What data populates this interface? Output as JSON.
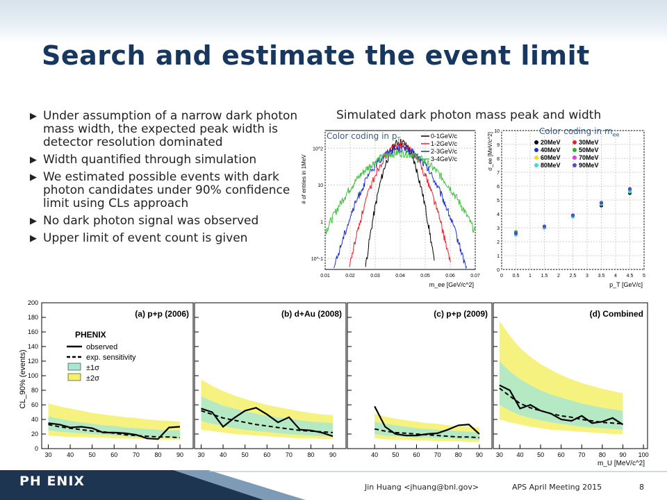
{
  "slide": {
    "title": "Search and estimate the event limit",
    "bullets": [
      "Under assumption of a narrow dark photon mass width, the expected peak width is detector resolution dominated",
      "Width quantified through simulation",
      "We estimated possible events with dark photon candidates under 90% confidence limit using CLs approach",
      "No dark photon signal was observed",
      "Upper limit of event count is given"
    ],
    "bullet_icon": "triangle-right-icon",
    "figure_title": "Simulated dark photon mass peak and width",
    "color_coding_pt": "Color coding in p",
    "color_coding_pt_sub": "T",
    "color_coding_mee": "Color coding in m",
    "color_coding_mee_sub": "ee",
    "footer": {
      "logo": "PH ENIX",
      "author": "Jin Huang <jhuang@bnl.gov>",
      "meeting": "APS April Meeting 2015",
      "page": "8"
    },
    "colors": {
      "title": "#17375e",
      "accent_band": "#d7e2ec"
    }
  },
  "chart_data": [
    {
      "type": "line",
      "xlabel": "m_ee [GeV/c^2]",
      "ylabel": "# of entries in 1MeV",
      "xlim": [
        0.01,
        0.07
      ],
      "yscale": "log",
      "ylim": [
        0.05,
        300
      ],
      "x_ticks": [
        "0.01",
        "0.02",
        "0.03",
        "0.04",
        "0.05",
        "0.06",
        "0.07"
      ],
      "y_ticks": [
        "10^-1",
        "1",
        "10",
        "10^2"
      ],
      "legend": [
        "0-1GeV/c",
        "1-2GeV/c",
        "2-3GeV/c",
        "3-4GeV/c"
      ],
      "series": [
        {
          "name": "0-1GeV/c",
          "color": "#000000",
          "center": 0.04,
          "sigma": 0.0035,
          "peak": 150
        },
        {
          "name": "1-2GeV/c",
          "color": "#e8202a",
          "center": 0.04,
          "sigma": 0.0052,
          "peak": 120
        },
        {
          "name": "2-3GeV/c",
          "color": "#1f2fd0",
          "center": 0.04,
          "sigma": 0.0068,
          "peak": 100
        },
        {
          "name": "3-4GeV/c",
          "color": "#3fbf3f",
          "center": 0.04,
          "sigma": 0.0095,
          "peak": 75
        }
      ]
    },
    {
      "type": "scatter",
      "xlabel": "p_T [GeV/c]",
      "ylabel": "σ_ee [MeV/c^2]",
      "xlim": [
        0,
        5
      ],
      "ylim": [
        0,
        10
      ],
      "x_ticks": [
        "0",
        "0.5",
        "1",
        "1.5",
        "2",
        "2.5",
        "3",
        "3.5",
        "4",
        "4.5",
        "5"
      ],
      "y_ticks": [
        "0",
        "1",
        "2",
        "3",
        "4",
        "5",
        "6",
        "7",
        "8",
        "9",
        "10"
      ],
      "x": [
        0.5,
        1.5,
        2.5,
        3.5,
        4.5
      ],
      "series": [
        {
          "name": "20MeV",
          "color": "#000000",
          "values": [
            2.6,
            3.0,
            3.8,
            4.6,
            5.5
          ]
        },
        {
          "name": "30MeV",
          "color": "#e8202a",
          "values": [
            2.6,
            3.0,
            3.8,
            4.7,
            5.6
          ]
        },
        {
          "name": "40MeV",
          "color": "#1f2fd0",
          "values": [
            2.6,
            3.1,
            3.9,
            4.8,
            5.7
          ]
        },
        {
          "name": "50MeV",
          "color": "#2fae3a",
          "values": [
            2.7,
            3.1,
            3.9,
            4.8,
            5.7
          ]
        },
        {
          "name": "60MeV",
          "color": "#e8e018",
          "values": [
            2.6,
            3.0,
            3.8,
            4.7,
            5.6
          ]
        },
        {
          "name": "70MeV",
          "color": "#e040e0",
          "values": [
            2.6,
            3.1,
            3.9,
            4.8,
            5.8
          ]
        },
        {
          "name": "80MeV",
          "color": "#40d8d8",
          "values": [
            2.5,
            3.0,
            3.8,
            4.7,
            5.6
          ]
        },
        {
          "name": "90MeV",
          "color": "#5050c0",
          "values": [
            2.6,
            3.1,
            3.9,
            4.8,
            5.8
          ]
        }
      ]
    },
    {
      "type": "line",
      "panels": [
        {
          "label": "(a) p+p (2006)",
          "xlim": [
            27,
            96
          ],
          "x_ticks": [
            "30",
            "40",
            "50",
            "60",
            "70",
            "80",
            "90"
          ],
          "x": [
            30,
            35,
            40,
            45,
            50,
            55,
            60,
            65,
            70,
            75,
            80,
            85,
            90
          ],
          "observed": [
            35,
            33,
            29,
            30,
            28,
            22,
            22,
            21,
            19,
            14,
            13,
            29,
            30
          ],
          "expected": [
            33,
            30,
            28,
            26,
            24,
            23,
            21,
            19,
            18,
            17,
            16,
            16,
            15
          ],
          "band1_lo": [
            25,
            23,
            22,
            21,
            20,
            19,
            18,
            17,
            16,
            16,
            15,
            15,
            14
          ],
          "band1_hi": [
            44,
            41,
            38,
            36,
            34,
            32,
            31,
            29,
            28,
            27,
            26,
            25,
            25
          ],
          "band2_lo": [
            18,
            17,
            16,
            16,
            15,
            15,
            14,
            14,
            13,
            13,
            12,
            12,
            12
          ],
          "band2_hi": [
            62,
            58,
            55,
            52,
            49,
            47,
            45,
            43,
            42,
            40,
            39,
            38,
            37
          ]
        },
        {
          "label": "(b) d+Au (2008)",
          "xlim": [
            27,
            96
          ],
          "x_ticks": [
            "30",
            "40",
            "50",
            "60",
            "70",
            "80",
            "90"
          ],
          "x": [
            30,
            35,
            40,
            45,
            50,
            55,
            60,
            65,
            70,
            75,
            80,
            85,
            90
          ],
          "observed": [
            55,
            50,
            30,
            42,
            52,
            56,
            47,
            36,
            43,
            26,
            25,
            22,
            17
          ],
          "expected": [
            52,
            47,
            42,
            39,
            36,
            33,
            31,
            29,
            27,
            25,
            24,
            23,
            22
          ],
          "band1_lo": [
            38,
            34,
            31,
            28,
            26,
            24,
            23,
            21,
            20,
            19,
            18,
            17,
            17
          ],
          "band1_hi": [
            72,
            65,
            59,
            55,
            51,
            48,
            45,
            43,
            41,
            39,
            37,
            36,
            35
          ],
          "band2_lo": [
            26,
            24,
            22,
            20,
            19,
            18,
            17,
            16,
            15,
            14,
            14,
            13,
            13
          ],
          "band2_hi": [
            95,
            86,
            79,
            73,
            68,
            64,
            60,
            57,
            54,
            51,
            49,
            47,
            46
          ]
        },
        {
          "label": "(c) p+p (2009)",
          "xlim": [
            27,
            96
          ],
          "x_ticks": [
            "40",
            "50",
            "60",
            "70",
            "80",
            "90"
          ],
          "x": [
            40,
            45,
            50,
            55,
            60,
            65,
            70,
            75,
            80,
            85,
            90
          ],
          "observed": [
            58,
            30,
            20,
            18,
            18,
            20,
            21,
            26,
            32,
            33,
            20
          ],
          "expected": [
            27,
            24,
            22,
            21,
            20,
            19,
            18,
            17,
            16,
            16,
            15
          ],
          "band1_lo": [
            20,
            18,
            17,
            16,
            15,
            15,
            14,
            14,
            13,
            13,
            12
          ],
          "band1_hi": [
            37,
            34,
            32,
            30,
            28,
            27,
            26,
            25,
            24,
            23,
            22
          ],
          "band2_lo": [
            14,
            13,
            12,
            12,
            11,
            11,
            10,
            10,
            10,
            9,
            9
          ],
          "band2_hi": [
            48,
            44,
            41,
            39,
            37,
            35,
            34,
            32,
            31,
            30,
            29
          ]
        },
        {
          "label": "(d) Combined",
          "xlim": [
            27,
            102
          ],
          "x_ticks": [
            "30",
            "40",
            "50",
            "60",
            "70",
            "80",
            "90",
            "100"
          ],
          "x": [
            30,
            35,
            40,
            45,
            50,
            55,
            60,
            65,
            70,
            75,
            80,
            85,
            90
          ],
          "observed": [
            87,
            80,
            55,
            60,
            52,
            48,
            40,
            38,
            45,
            35,
            37,
            42,
            33
          ],
          "expected": [
            83,
            72,
            62,
            56,
            52,
            48,
            45,
            43,
            40,
            38,
            36,
            35,
            34
          ],
          "band1_lo": [
            60,
            52,
            46,
            42,
            39,
            36,
            34,
            32,
            30,
            29,
            28,
            27,
            26
          ],
          "band1_hi": [
            120,
            106,
            95,
            87,
            80,
            74,
            70,
            66,
            62,
            59,
            56,
            54,
            52
          ],
          "band2_lo": [
            40,
            36,
            33,
            30,
            28,
            26,
            25,
            24,
            23,
            22,
            21,
            20,
            20
          ],
          "band2_hi": [
            175,
            155,
            138,
            126,
            116,
            108,
            101,
            95,
            90,
            86,
            82,
            79,
            76
          ]
        }
      ],
      "ylabel": "CL_90% (events)",
      "xlabel": "m_U [MeV/c^2]",
      "ylim": [
        0,
        200
      ],
      "y_ticks": [
        "0",
        "20",
        "40",
        "60",
        "80",
        "100",
        "120",
        "140",
        "160",
        "180",
        "200"
      ],
      "legend_title": "PHENIX",
      "legend": [
        "observed",
        "exp. sensitivity",
        "±1σ",
        "±2σ"
      ],
      "colors": {
        "band1": "#a8e8d0",
        "band2": "#f3f06a",
        "observed": "#000000",
        "expected": "#000000"
      }
    }
  ]
}
